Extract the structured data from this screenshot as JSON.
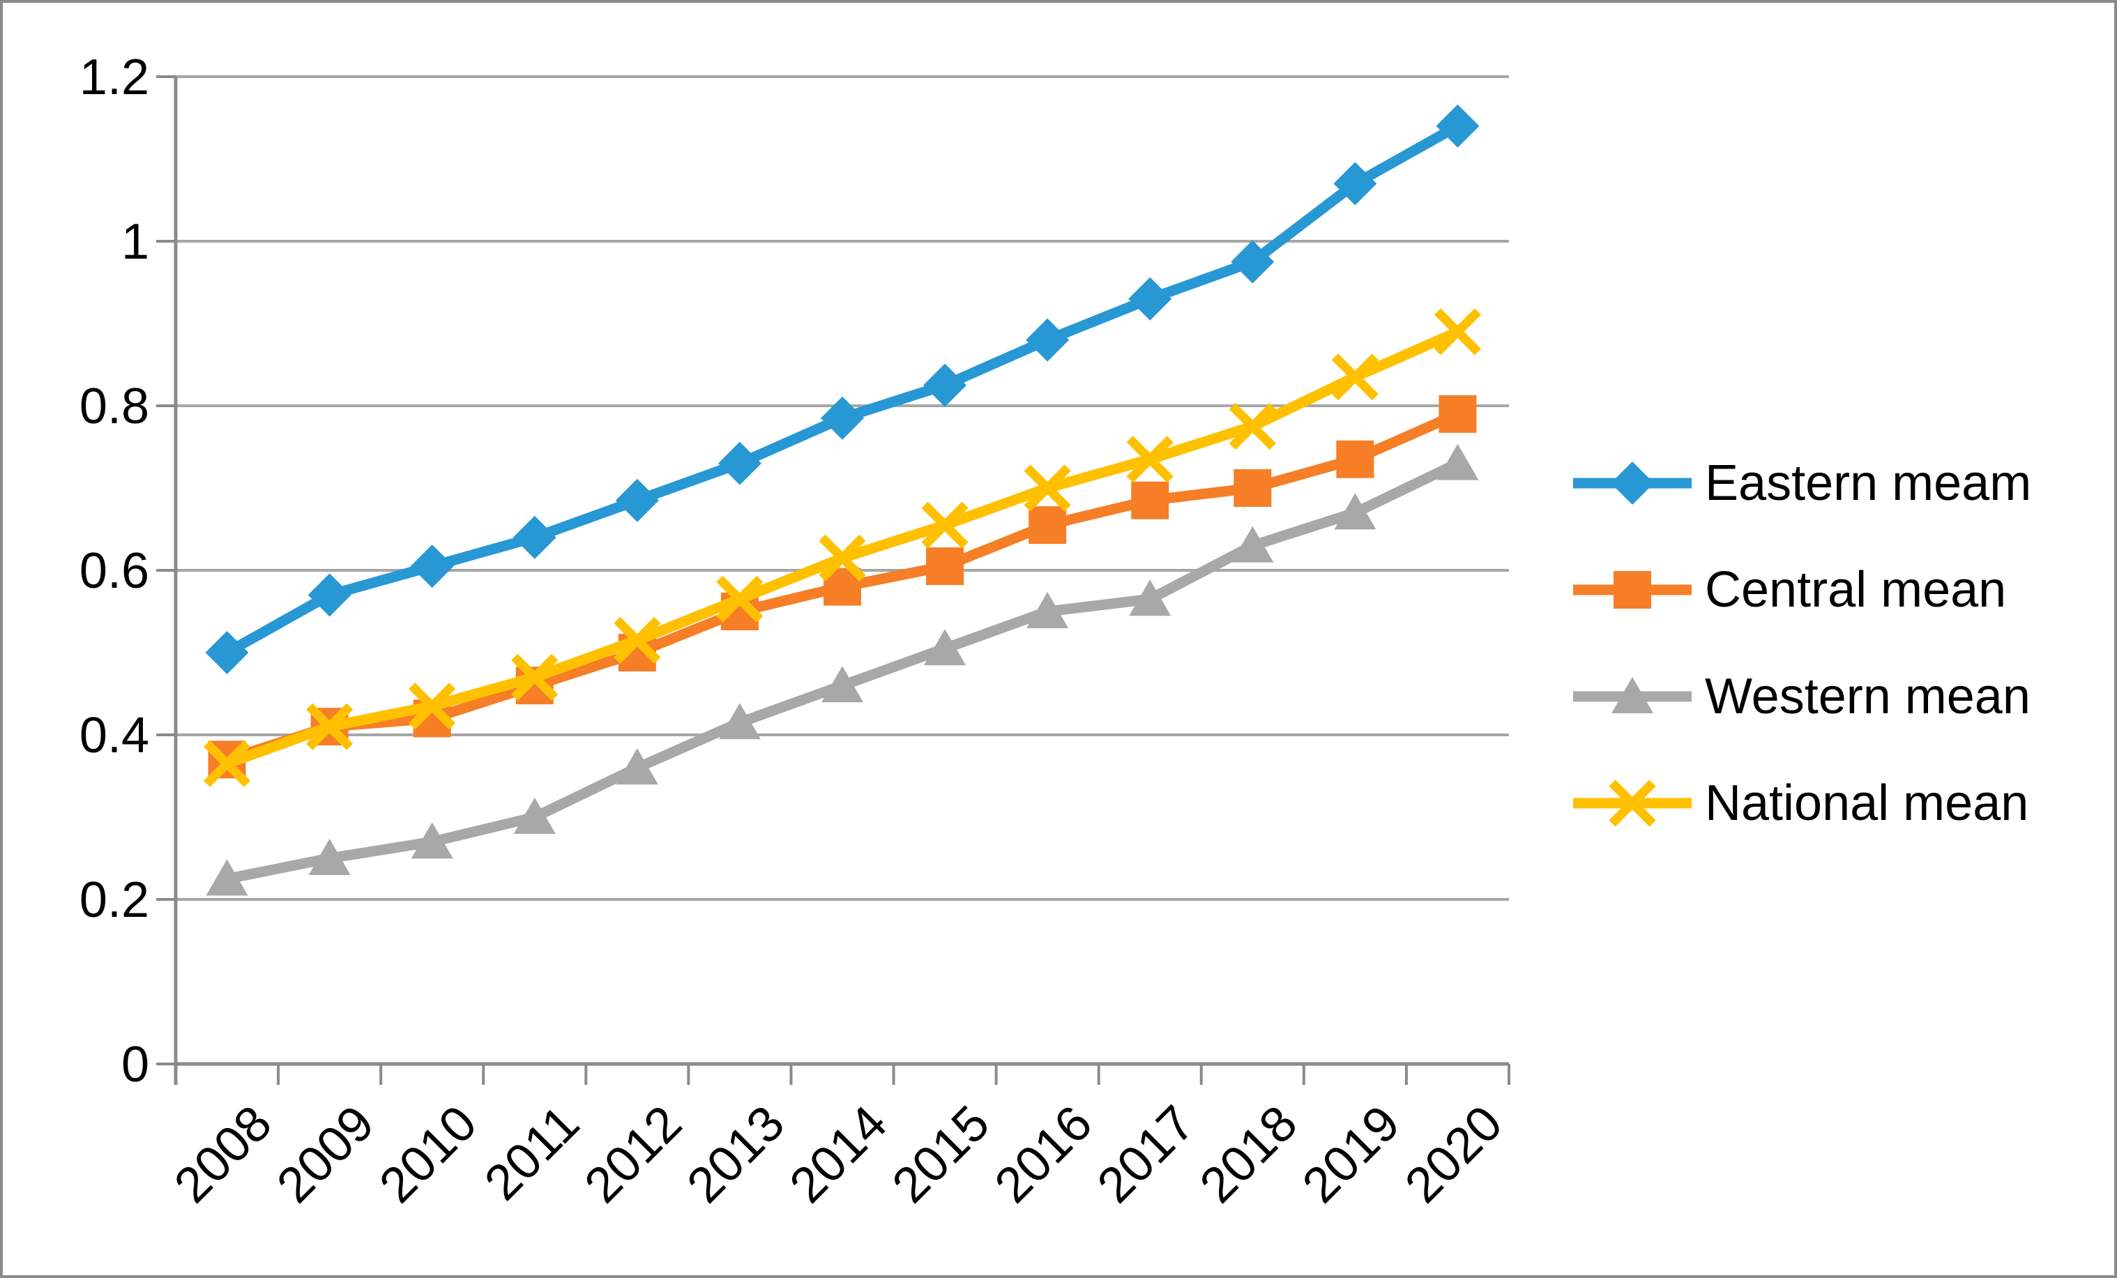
{
  "chart_data": {
    "type": "line",
    "title": "",
    "xlabel": "",
    "ylabel": "",
    "categories": [
      "2008",
      "2009",
      "2010",
      "2011",
      "2012",
      "2013",
      "2014",
      "2015",
      "2016",
      "2017",
      "2018",
      "2019",
      "2020"
    ],
    "series": [
      {
        "name": "Eastern meam",
        "color": "#2898d5",
        "marker": "diamond",
        "values": [
          0.5,
          0.57,
          0.605,
          0.64,
          0.685,
          0.73,
          0.785,
          0.825,
          0.88,
          0.93,
          0.975,
          1.07,
          1.14
        ]
      },
      {
        "name": "Central mean",
        "color": "#f57e27",
        "marker": "square",
        "values": [
          0.37,
          0.41,
          0.42,
          0.46,
          0.5,
          0.55,
          0.58,
          0.605,
          0.655,
          0.685,
          0.7,
          0.735,
          0.79
        ]
      },
      {
        "name": "Western mean",
        "color": "#a8a8a8",
        "marker": "triangle",
        "values": [
          0.225,
          0.25,
          0.27,
          0.3,
          0.36,
          0.415,
          0.46,
          0.505,
          0.55,
          0.565,
          0.63,
          0.67,
          0.73
        ]
      },
      {
        "name": "National mean",
        "color": "#ffc000",
        "marker": "x",
        "values": [
          0.365,
          0.41,
          0.435,
          0.47,
          0.515,
          0.565,
          0.615,
          0.655,
          0.7,
          0.735,
          0.775,
          0.835,
          0.89
        ]
      }
    ],
    "ylim": [
      0,
      1.2
    ],
    "y_ticks": [
      "0",
      "0.2",
      "0.4",
      "0.6",
      "0.8",
      "1",
      "1.2"
    ],
    "grid": "horizontal",
    "legend_position": "right"
  }
}
